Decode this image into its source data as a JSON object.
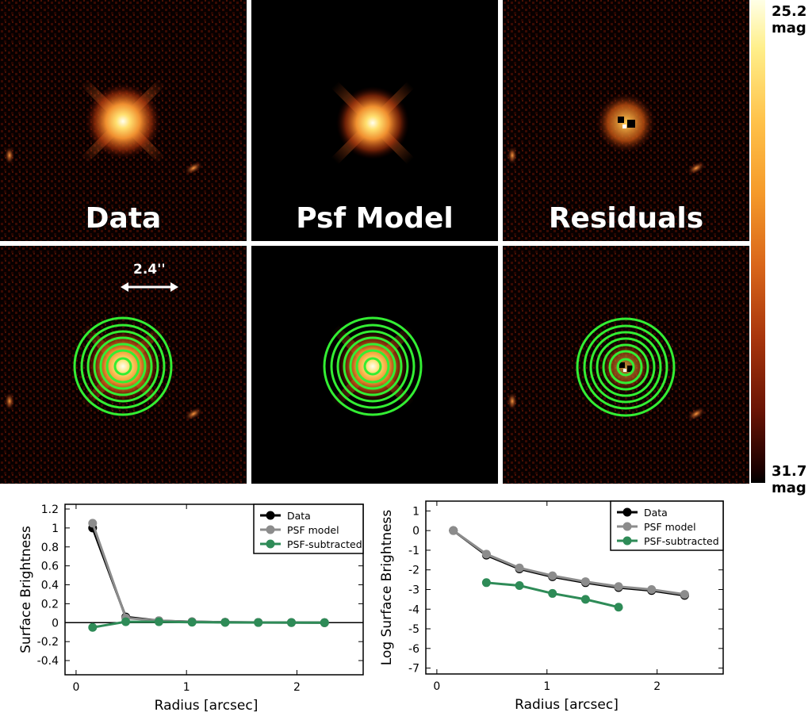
{
  "panels": {
    "data_label": "Data",
    "psf_label": "Psf Model",
    "residuals_label": "Residuals",
    "scale_label": "2.4''"
  },
  "colorbar": {
    "top_value": "25.2",
    "top_unit": "mag",
    "bottom_value": "31.7",
    "bottom_unit": "mag"
  },
  "colors": {
    "data": "#000000",
    "psf_model": "#8c8c8c",
    "psf_subtracted": "#2e8b57",
    "rings": "#33ee33"
  },
  "chart_data": [
    {
      "type": "line",
      "title": "",
      "xlabel": "Radius [arcsec]",
      "ylabel": "Surface Brightness",
      "xlim": [
        -0.1,
        2.6
      ],
      "ylim": [
        -0.55,
        1.25
      ],
      "xticks": [
        "0",
        "1",
        "2"
      ],
      "yticks": [
        "-0.4",
        "-0.2",
        "0",
        "0.2",
        "0.4",
        "0.6",
        "0.8",
        "1",
        "1.2"
      ],
      "zero_line": true,
      "legend_position": "top-right",
      "series": [
        {
          "name": "Data",
          "x": [
            0.15,
            0.45,
            0.75,
            1.05,
            1.35,
            1.65,
            1.95,
            2.25
          ],
          "values": [
            1.0,
            0.06,
            0.02,
            0.01,
            0.005,
            0.003,
            0.002,
            0.0
          ]
        },
        {
          "name": "PSF model",
          "x": [
            0.15,
            0.45,
            0.75,
            1.05,
            1.35,
            1.65,
            1.95,
            2.25
          ],
          "values": [
            1.05,
            0.05,
            0.02,
            0.01,
            0.005,
            0.003,
            0.002,
            0.0
          ]
        },
        {
          "name": "PSF-subtracted",
          "x": [
            0.15,
            0.45,
            0.75,
            1.05,
            1.35,
            1.65,
            1.95,
            2.25
          ],
          "values": [
            -0.05,
            0.01,
            0.01,
            0.005,
            0.003,
            0.002,
            0.001,
            0.0
          ]
        }
      ]
    },
    {
      "type": "line",
      "title": "",
      "xlabel": "Radius [arcsec]",
      "ylabel": "Log Surface Brightness",
      "xlim": [
        -0.1,
        2.6
      ],
      "ylim": [
        -7.3,
        1.5
      ],
      "xticks": [
        "0",
        "1",
        "2"
      ],
      "yticks": [
        "-7",
        "-6",
        "-5",
        "-4",
        "-3",
        "-2",
        "-1",
        "0",
        "1"
      ],
      "zero_line": false,
      "legend_position": "top-right",
      "series": [
        {
          "name": "Data",
          "x": [
            0.15,
            0.45,
            0.75,
            1.05,
            1.35,
            1.65,
            1.95,
            2.25
          ],
          "values": [
            0.0,
            -1.25,
            -1.95,
            -2.35,
            -2.65,
            -2.9,
            -3.05,
            -3.3
          ]
        },
        {
          "name": "PSF model",
          "x": [
            0.15,
            0.45,
            0.75,
            1.05,
            1.35,
            1.65,
            1.95,
            2.25
          ],
          "values": [
            0.0,
            -1.2,
            -1.9,
            -2.3,
            -2.6,
            -2.85,
            -3.0,
            -3.25
          ]
        },
        {
          "name": "PSF-subtracted",
          "x": [
            0.45,
            0.75,
            1.05,
            1.35,
            1.65
          ],
          "values": [
            -2.65,
            -2.8,
            -3.2,
            -3.5,
            -3.9
          ]
        }
      ]
    }
  ]
}
